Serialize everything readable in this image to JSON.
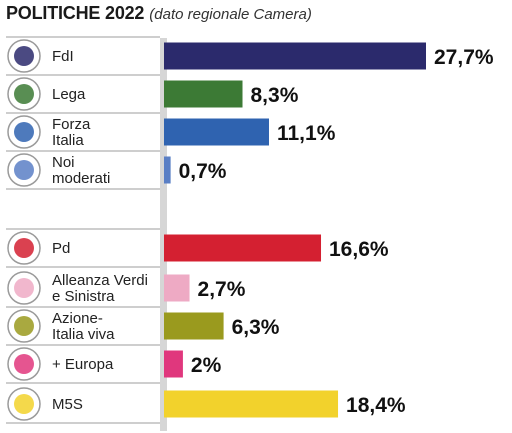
{
  "title": "POLITICHE 2022",
  "subtitle": "(dato regionale Camera)",
  "chart_data": {
    "type": "bar",
    "orientation": "horizontal",
    "title": "POLITICHE 2022",
    "subtitle": "(dato regionale Camera)",
    "xlim": [
      0,
      27.7
    ],
    "grid": false,
    "legend": "none",
    "categories": [
      [
        "FdI"
      ],
      [
        "Lega"
      ],
      [
        "Forza",
        "Italia"
      ],
      [
        "Noi",
        "moderati"
      ],
      [
        "Pd"
      ],
      [
        "Alleanza Verdi",
        "e Sinistra"
      ],
      [
        "Azione-",
        "Italia viva"
      ],
      [
        "+ Europa"
      ],
      [
        "M5S"
      ]
    ],
    "values": [
      27.7,
      8.3,
      11.1,
      0.7,
      16.6,
      2.7,
      6.3,
      2,
      18.4
    ],
    "value_labels": [
      "27,7%",
      "8,3%",
      "11,1%",
      "0,7%",
      "16,6%",
      "2,7%",
      "6,3%",
      "2%",
      "18,4%"
    ],
    "colors": [
      "#2b2a6c",
      "#3c7a35",
      "#2f63b0",
      "#5a7fc5",
      "#d42031",
      "#eeaac4",
      "#9a9a1e",
      "#e0377d",
      "#f2d22c"
    ],
    "logos": [
      "fdi-logo-icon",
      "lega-logo-icon",
      "forza-italia-logo-icon",
      "noi-moderati-logo-icon",
      "pd-logo-icon",
      "avs-logo-icon",
      "azione-italia-viva-logo-icon",
      "piu-europa-logo-icon",
      "m5s-logo-icon"
    ]
  }
}
